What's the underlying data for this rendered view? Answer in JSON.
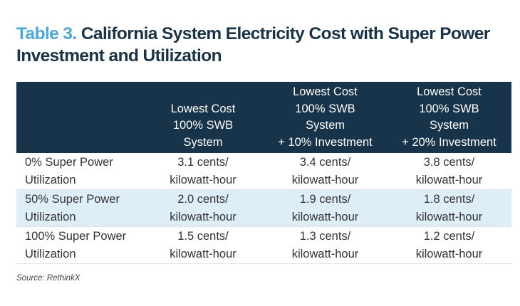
{
  "title": {
    "label": "Table 3.",
    "text": "California System Electricity Cost with Super Power Investment and Utilization"
  },
  "table": {
    "headers": [
      "",
      [
        "Lowest Cost",
        "100% SWB",
        "System"
      ],
      [
        "Lowest Cost",
        "100% SWB",
        "System",
        "+ 10% Investment"
      ],
      [
        "Lowest Cost",
        "100% SWB",
        "System",
        "+ 20% Investment"
      ]
    ],
    "rows": [
      {
        "label": [
          "0% Super Power",
          "Utilization"
        ],
        "values": [
          [
            "3.1 cents/",
            "kilowatt-hour"
          ],
          [
            "3.4 cents/",
            "kilowatt-hour"
          ],
          [
            "3.8 cents/",
            "kilowatt-hour"
          ]
        ]
      },
      {
        "label": [
          "50% Super Power",
          "Utilization"
        ],
        "values": [
          [
            "2.0 cents/",
            "kilowatt-hour"
          ],
          [
            "1.9 cents/",
            "kilowatt-hour"
          ],
          [
            "1.8 cents/",
            "kilowatt-hour"
          ]
        ]
      },
      {
        "label": [
          "100% Super Power",
          "Utilization"
        ],
        "values": [
          [
            "1.5 cents/",
            "kilowatt-hour"
          ],
          [
            "1.3 cents/",
            "kilowatt-hour"
          ],
          [
            "1.2 cents/",
            "kilowatt-hour"
          ]
        ]
      }
    ]
  },
  "source": "Source: RethinkX",
  "colors": {
    "header_bg": "#17344a",
    "accent": "#4aa7d6",
    "alt_row": "#deeef7"
  }
}
